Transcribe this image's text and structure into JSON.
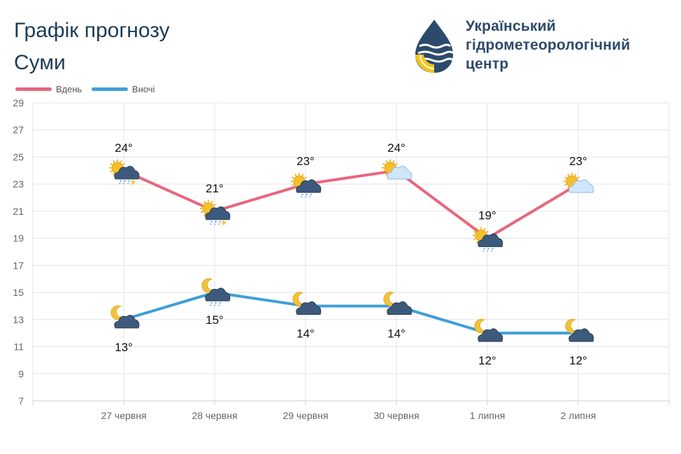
{
  "header": {
    "title": "Графік прогнозу",
    "city": "Суми"
  },
  "org": {
    "lines": [
      "Український",
      "гідрометеорологічний",
      "центр"
    ]
  },
  "colors": {
    "day": "#e8667e",
    "night": "#3f9fd6",
    "title": "#1d3c57",
    "org": "#2c4a6b"
  },
  "chart_data": {
    "type": "line",
    "categories": [
      "27 червня",
      "28 червня",
      "29 червня",
      "30 червня",
      "1 липня",
      "2 липня"
    ],
    "series": [
      {
        "name": "Вдень",
        "values": [
          24,
          21,
          23,
          24,
          19,
          23
        ],
        "labels": [
          "24°",
          "21°",
          "23°",
          "24°",
          "19°",
          "23°"
        ],
        "icons": [
          "sun-cloud-rain-thunder-icon",
          "sun-cloud-rain-thunder-icon",
          "sun-cloud-rain-icon",
          "sun-cloud-icon",
          "sun-cloud-rain-icon",
          "sun-cloud-icon"
        ]
      },
      {
        "name": "Вночі",
        "values": [
          13,
          15,
          14,
          14,
          12,
          12
        ],
        "labels": [
          "13°",
          "15°",
          "14°",
          "14°",
          "12°",
          "12°"
        ],
        "icons": [
          "moon-cloud-icon",
          "moon-cloud-rain-icon",
          "moon-cloud-icon",
          "moon-cloud-icon",
          "moon-cloud-icon",
          "moon-cloud-icon"
        ]
      }
    ],
    "yticks": [
      7,
      9,
      11,
      13,
      15,
      17,
      19,
      21,
      23,
      25,
      27,
      29
    ],
    "ylim": [
      7,
      29
    ],
    "grid": true,
    "legend_position": "top-left"
  }
}
